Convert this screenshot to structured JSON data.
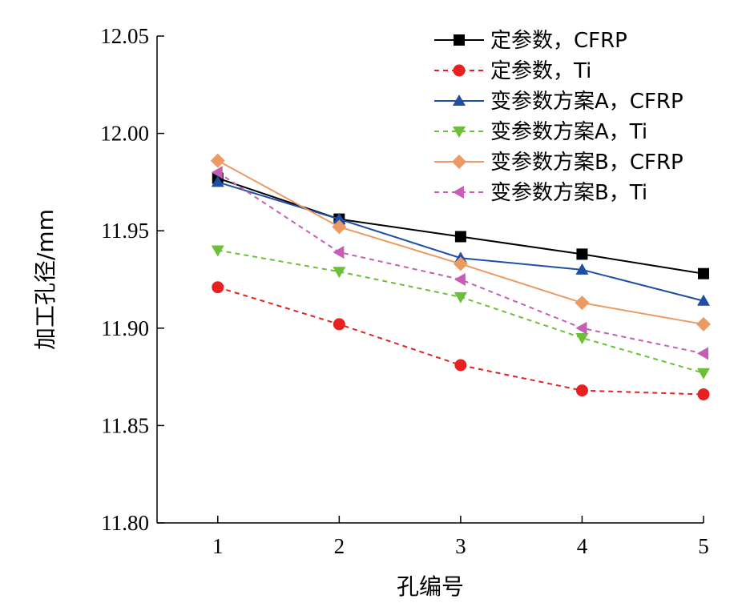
{
  "chart_data": {
    "type": "line",
    "title": "",
    "xlabel": "孔编号",
    "ylabel": "加工孔径/mm",
    "categories": [
      "1",
      "2",
      "3",
      "4",
      "5"
    ],
    "x": [
      1,
      2,
      3,
      4,
      5
    ],
    "xlim": [
      0.5,
      5
    ],
    "ylim": [
      11.8,
      12.05
    ],
    "yticks": [
      "11.80",
      "11.85",
      "11.90",
      "11.95",
      "12.00",
      "12.05"
    ],
    "grid": false,
    "legend_position": "top-right",
    "series": [
      {
        "name": "定参数，CFRP",
        "values": [
          11.977,
          11.956,
          11.947,
          11.938,
          11.928
        ],
        "color": "#000000",
        "marker": "square",
        "dashed": false
      },
      {
        "name": "定参数，Ti",
        "values": [
          11.921,
          11.902,
          11.881,
          11.868,
          11.866
        ],
        "color": "#e8201f",
        "marker": "circle",
        "dashed": true
      },
      {
        "name": "变参数方案A，CFRP",
        "values": [
          11.975,
          11.956,
          11.936,
          11.93,
          11.914
        ],
        "color": "#1f4fa3",
        "marker": "triangle-up",
        "dashed": false
      },
      {
        "name": "变参数方案A，Ti",
        "values": [
          11.94,
          11.929,
          11.916,
          11.895,
          11.877
        ],
        "color": "#6cbf3a",
        "marker": "triangle-down",
        "dashed": true
      },
      {
        "name": "变参数方案B，CFRP",
        "values": [
          11.986,
          11.952,
          11.933,
          11.913,
          11.902
        ],
        "color": "#ec9a62",
        "marker": "diamond",
        "dashed": false
      },
      {
        "name": "变参数方案B，Ti",
        "values": [
          11.98,
          11.939,
          11.925,
          11.9,
          11.887
        ],
        "color": "#c55fb5",
        "marker": "triangle-left",
        "dashed": true
      }
    ]
  }
}
